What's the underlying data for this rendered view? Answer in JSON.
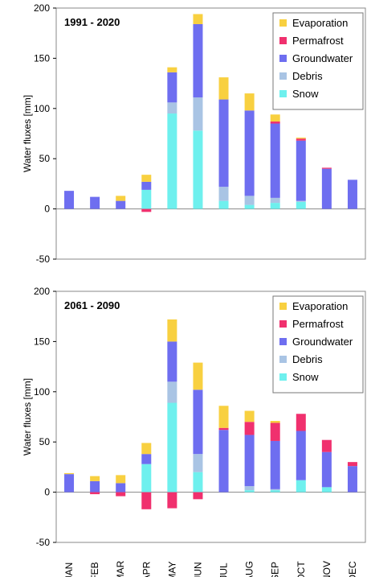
{
  "chart_data": [
    {
      "type": "bar",
      "stacked": true,
      "title": "1991 - 2020",
      "ylabel": "Water fluxes [mm]",
      "ylim": [
        -50,
        200
      ],
      "yticks": [
        -50,
        0,
        50,
        100,
        150,
        200
      ],
      "grid": false,
      "legend": "top-right",
      "categories": [
        "JAN",
        "FEB",
        "MAR",
        "APR",
        "MAY",
        "JUN",
        "JUL",
        "AUG",
        "SEP",
        "OCT",
        "NOV",
        "DEC"
      ],
      "series": [
        {
          "name": "Snow",
          "values": [
            0,
            0,
            0,
            19,
            95,
            78,
            8,
            4,
            6,
            7,
            0,
            0
          ]
        },
        {
          "name": "Debris",
          "values": [
            0,
            0,
            0,
            0,
            11,
            33,
            14,
            9,
            5,
            1,
            0,
            0
          ]
        },
        {
          "name": "Groundwater",
          "values": [
            18,
            12,
            8,
            8,
            30,
            73,
            87,
            85,
            74,
            60,
            40,
            29
          ]
        },
        {
          "name": "Permafrost",
          "values": [
            0,
            0,
            0,
            -3,
            0,
            0,
            0,
            0,
            2,
            2,
            1,
            0
          ]
        },
        {
          "name": "Evaporation",
          "values": [
            0,
            0,
            5,
            7,
            5,
            10,
            22,
            17,
            7,
            1,
            0,
            0
          ]
        }
      ]
    },
    {
      "type": "bar",
      "stacked": true,
      "title": "2061 - 2090",
      "ylabel": "Water fluxes [mm]",
      "ylim": [
        -50,
        200
      ],
      "yticks": [
        -50,
        0,
        50,
        100,
        150,
        200
      ],
      "grid": false,
      "legend": "top-right",
      "categories": [
        "JAN",
        "FEB",
        "MAR",
        "APR",
        "MAY",
        "JUN",
        "JUL",
        "AUG",
        "SEP",
        "OCT",
        "NOV",
        "DEC"
      ],
      "series": [
        {
          "name": "Snow",
          "values": [
            0,
            0,
            0,
            28,
            89,
            20,
            0,
            2,
            2,
            12,
            5,
            0
          ]
        },
        {
          "name": "Debris",
          "values": [
            0,
            0,
            0,
            0,
            21,
            18,
            0,
            4,
            1,
            0,
            0,
            0
          ]
        },
        {
          "name": "Groundwater",
          "values": [
            18,
            11,
            9,
            10,
            40,
            64,
            62,
            51,
            48,
            49,
            35,
            26
          ]
        },
        {
          "name": "Permafrost",
          "values": [
            0,
            -2,
            -4,
            -17,
            -16,
            -7,
            2,
            13,
            18,
            17,
            12,
            4
          ]
        },
        {
          "name": "Evaporation",
          "values": [
            1,
            5,
            8,
            11,
            22,
            27,
            22,
            11,
            2,
            0,
            0,
            0
          ]
        }
      ]
    }
  ],
  "colors": {
    "Snow": "#6ef0ee",
    "Debris": "#a9c4e4",
    "Groundwater": "#6e6ef0",
    "Permafrost": "#f0306e",
    "Evaporation": "#f8d040",
    "axis": "#000000",
    "frame": "#888888"
  }
}
